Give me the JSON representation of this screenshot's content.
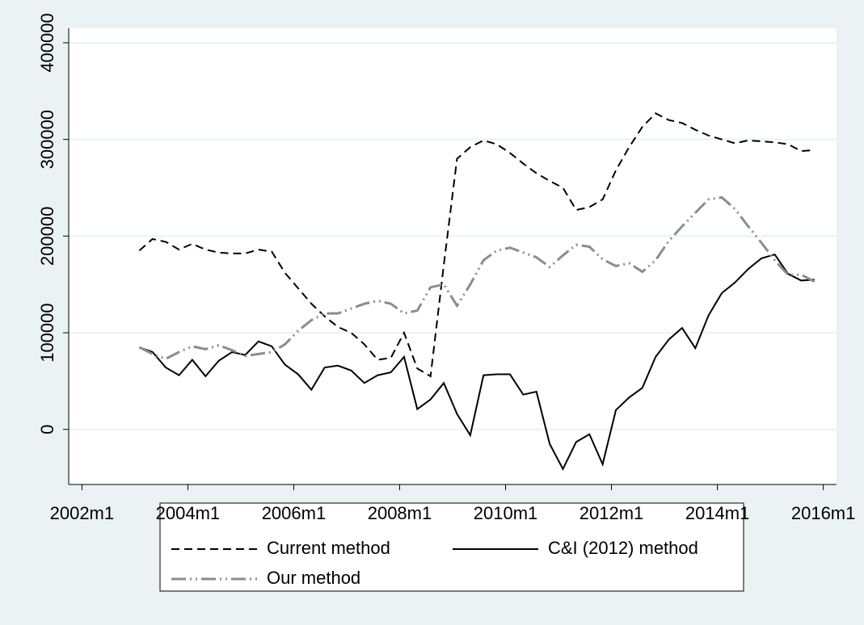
{
  "chart_data": {
    "type": "line",
    "x": [
      517,
      520,
      523,
      526,
      529,
      532,
      535,
      538,
      541,
      544,
      547,
      550,
      553,
      556,
      559,
      562,
      565,
      568,
      571,
      574,
      577,
      580,
      583,
      586,
      589,
      592,
      595,
      598,
      601,
      604,
      607,
      610,
      613,
      616,
      619,
      622,
      625,
      628,
      631,
      634,
      637,
      640,
      643,
      646,
      649,
      652,
      655,
      658,
      661,
      664,
      667,
      670
    ],
    "series": [
      {
        "name": "Current method",
        "color": "#000000",
        "dash": "10,6",
        "values": [
          185000,
          197000,
          194000,
          186000,
          192000,
          186000,
          183000,
          182000,
          182000,
          186000,
          184000,
          162000,
          146000,
          130000,
          117000,
          106000,
          100000,
          88000,
          72000,
          74000,
          100000,
          63000,
          55000,
          170000,
          280000,
          292000,
          299000,
          295000,
          286000,
          275000,
          265000,
          257000,
          250000,
          227000,
          230000,
          238000,
          268000,
          292000,
          313000,
          327000,
          320000,
          317000,
          310000,
          304000,
          300000,
          296000,
          299000,
          298000,
          297000,
          295000,
          288000,
          289000
        ]
      },
      {
        "name": "C&I (2012) method",
        "color": "#000000",
        "dash": "none",
        "values": [
          85000,
          80000,
          64000,
          56000,
          72000,
          55000,
          71000,
          80000,
          77000,
          91000,
          86000,
          67000,
          57000,
          41000,
          64000,
          66000,
          61000,
          48000,
          56000,
          59000,
          75000,
          21000,
          31000,
          48000,
          16000,
          -6000,
          56000,
          57000,
          57000,
          36000,
          39000,
          -15000,
          -41000,
          -13000,
          -5000,
          -36000,
          20000,
          33000,
          43000,
          75000,
          93000,
          105000,
          84000,
          118000,
          141000,
          152000,
          166000,
          177000,
          181000,
          161000,
          154000,
          155000
        ]
      },
      {
        "name": "Our method",
        "color": "#8c8c8c",
        "dash": "18,5,2,5,2,5",
        "values": [
          85000,
          78000,
          73000,
          80000,
          86000,
          83000,
          87000,
          82000,
          76000,
          78000,
          80000,
          88000,
          102000,
          113000,
          120000,
          120000,
          125000,
          130000,
          133000,
          130000,
          120000,
          123000,
          147000,
          150000,
          128000,
          150000,
          175000,
          185000,
          188000,
          183000,
          178000,
          168000,
          180000,
          191000,
          189000,
          176000,
          169000,
          172000,
          163000,
          175000,
          195000,
          210000,
          224000,
          238000,
          240000,
          228000,
          210000,
          193000,
          175000,
          160000,
          160000,
          153000
        ]
      }
    ],
    "xlim": [
      501,
      675
    ],
    "xticks": [
      {
        "value": 504,
        "label": "2002m1"
      },
      {
        "value": 528,
        "label": "2004m1"
      },
      {
        "value": 552,
        "label": "2006m1"
      },
      {
        "value": 576,
        "label": "2008m1"
      },
      {
        "value": 600,
        "label": "2010m1"
      },
      {
        "value": 624,
        "label": "2012m1"
      },
      {
        "value": 648,
        "label": "2014m1"
      },
      {
        "value": 672,
        "label": "2016m1"
      }
    ],
    "ylim": [
      -57000,
      415000
    ],
    "yticks": [
      0,
      100000,
      200000,
      300000,
      400000
    ],
    "grid": true,
    "legend": "bottom"
  }
}
